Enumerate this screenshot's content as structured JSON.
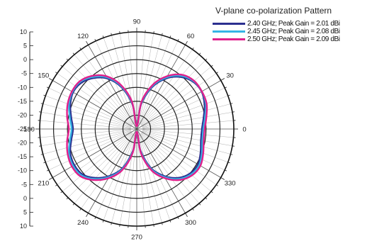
{
  "chart_data": {
    "type": "polar",
    "title": "V-plane co-polarization Pattern",
    "angle_ticks": [
      "0",
      "30",
      "60",
      "90",
      "120",
      "150",
      "180",
      "210",
      "240",
      "270",
      "300",
      "330"
    ],
    "angle_unit": "deg",
    "radial_labels": [
      "10",
      "5",
      "0",
      "-5",
      "-10",
      "-15",
      "-20",
      "-25",
      "-20",
      "-15",
      "-10",
      "-5",
      "0",
      "5",
      "10"
    ],
    "radial_ticks": [
      10,
      5,
      0,
      -5,
      -10,
      -15,
      -20,
      -25
    ],
    "r_range": [
      -25,
      10
    ],
    "grid": true,
    "legend_position": "top-right",
    "angles_deg": [
      0,
      10,
      20,
      30,
      40,
      50,
      60,
      70,
      80,
      90,
      100,
      110,
      120,
      130,
      140,
      150,
      160,
      170,
      180,
      190,
      200,
      210,
      220,
      230,
      240,
      250,
      260,
      270,
      280,
      290,
      300,
      310,
      320,
      330,
      340,
      350
    ],
    "series": [
      {
        "name": "2.40 GHz; Peak Gain = 2.01 dBi",
        "color": "#2b2f8f",
        "values": [
          -1.5,
          -0.5,
          1.0,
          2.0,
          1.5,
          -0.5,
          -4.0,
          -9.0,
          -16.0,
          -24.0,
          -16.0,
          -9.0,
          -4.0,
          -1.0,
          1.0,
          1.5,
          0.5,
          -1.0,
          -2.0,
          -1.0,
          0.5,
          1.0,
          0.5,
          -2.0,
          -5.5,
          -10.0,
          -17.0,
          -24.0,
          -17.0,
          -10.0,
          -5.5,
          -2.0,
          0.0,
          0.5,
          -0.5,
          -1.5
        ]
      },
      {
        "name": "2.45 GHz; Peak Gain = 2.08 dBi",
        "color": "#36b4e5",
        "values": [
          -1.0,
          0.0,
          1.5,
          2.1,
          1.8,
          0.0,
          -3.5,
          -8.5,
          -15.5,
          -24.0,
          -15.5,
          -8.5,
          -3.5,
          -0.5,
          1.5,
          1.8,
          1.0,
          -0.5,
          -1.5,
          -0.5,
          1.0,
          1.5,
          1.0,
          -1.5,
          -5.0,
          -9.5,
          -16.5,
          -24.0,
          -16.5,
          -9.5,
          -5.0,
          -1.5,
          0.5,
          1.0,
          0.0,
          -1.0
        ]
      },
      {
        "name": "2.50 GHz; Peak Gain = 2.09 dBi",
        "color": "#e0208c",
        "values": [
          -0.5,
          0.5,
          1.8,
          2.1,
          2.0,
          0.5,
          -3.0,
          -8.0,
          -15.0,
          -24.0,
          -15.0,
          -8.0,
          -3.0,
          0.0,
          1.8,
          2.0,
          1.5,
          0.5,
          -0.5,
          0.5,
          1.5,
          2.0,
          1.5,
          -1.0,
          -4.5,
          -9.0,
          -16.0,
          -24.0,
          -16.0,
          -9.0,
          -4.5,
          -1.0,
          1.0,
          1.5,
          0.5,
          -0.5
        ]
      }
    ]
  }
}
